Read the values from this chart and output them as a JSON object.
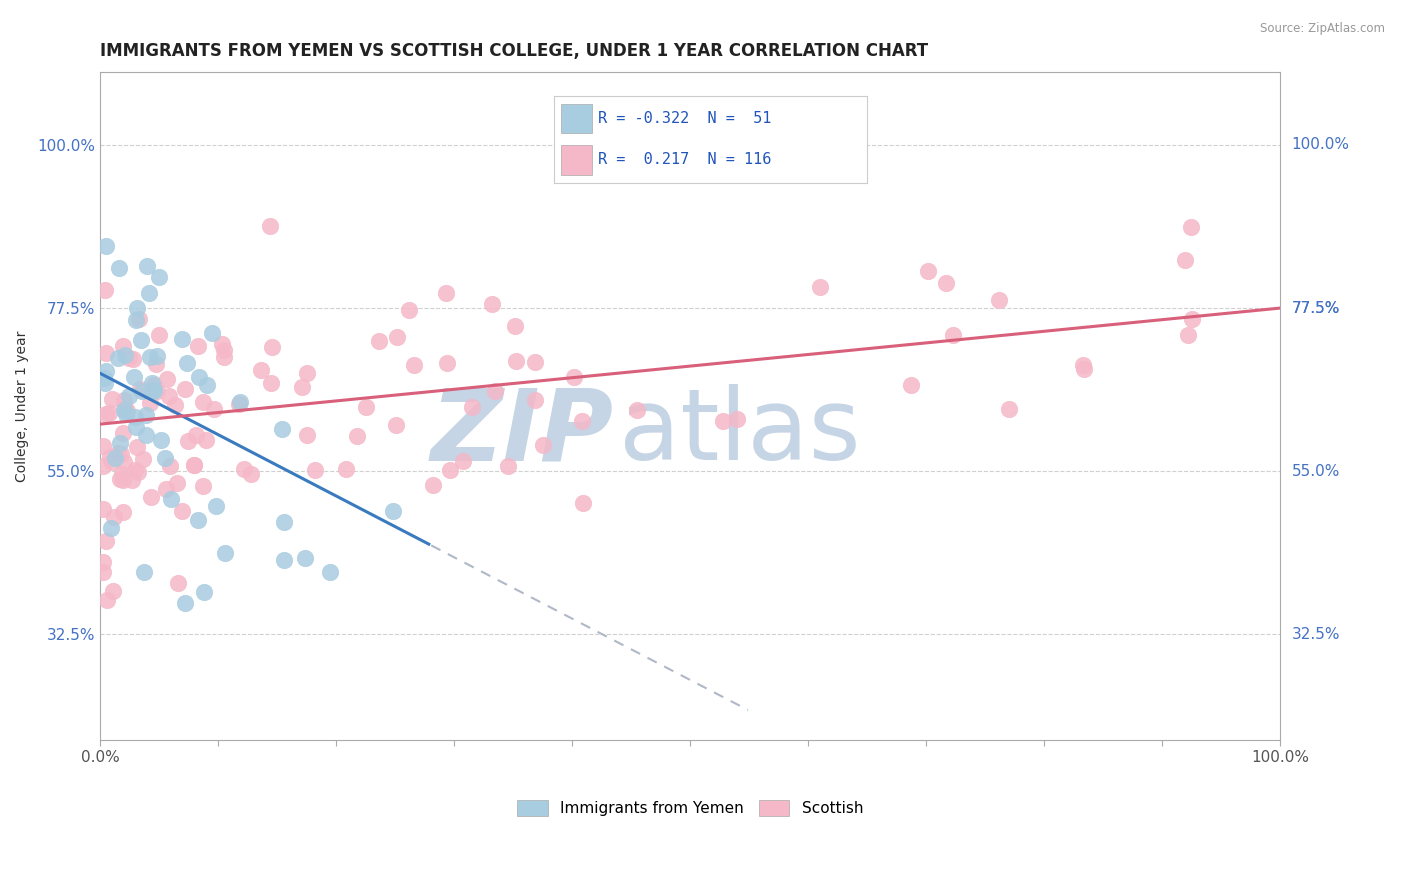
{
  "title": "IMMIGRANTS FROM YEMEN VS SCOTTISH COLLEGE, UNDER 1 YEAR CORRELATION CHART",
  "source_text": "Source: ZipAtlas.com",
  "ylabel": "College, Under 1 year",
  "legend_labels": [
    "Immigrants from Yemen",
    "Scottish"
  ],
  "xlim": [
    0.0,
    100.0
  ],
  "ylim": [
    18.0,
    110.0
  ],
  "yticks": [
    32.5,
    55.0,
    77.5,
    100.0
  ],
  "ytick_labels": [
    "32.5%",
    "55.0%",
    "77.5%",
    "100.0%"
  ],
  "xticks": [
    0.0,
    10.0,
    20.0,
    30.0,
    40.0,
    50.0,
    60.0,
    70.0,
    80.0,
    90.0,
    100.0
  ],
  "xtick_major_labels": [
    "0.0%",
    "",
    "",
    "",
    "",
    "",
    "",
    "",
    "",
    "",
    "100.0%"
  ],
  "r_blue": -0.322,
  "n_blue": 51,
  "r_pink": 0.217,
  "n_pink": 116,
  "blue_scatter_color": "#a8cce0",
  "pink_scatter_color": "#f5b8c8",
  "blue_line_color": "#3a7abf",
  "pink_line_color": "#d9607a",
  "dashed_line_color": "#b0b8c8",
  "background_color": "#ffffff",
  "grid_color": "#d0d0d0",
  "title_color": "#222222",
  "tick_color_y": "#4472c4",
  "tick_color_x": "#555555",
  "title_fontsize": 12,
  "axis_label_fontsize": 10,
  "tick_fontsize": 11,
  "legend_fontsize": 11,
  "corr_box_blue_text": "R = -0.322  N =  51",
  "corr_box_pink_text": "R =  0.217  N = 116",
  "blue_trend_x0": 0.0,
  "blue_trend_y0": 68.5,
  "blue_trend_x1": 55.0,
  "blue_trend_y1": 22.0,
  "blue_solid_end": 28.0,
  "pink_trend_x0": 0.0,
  "pink_trend_y0": 61.5,
  "pink_trend_x1": 100.0,
  "pink_trend_y1": 77.5,
  "watermark_zip_color": "#c5d5e5",
  "watermark_atlas_color": "#c5d5e5"
}
